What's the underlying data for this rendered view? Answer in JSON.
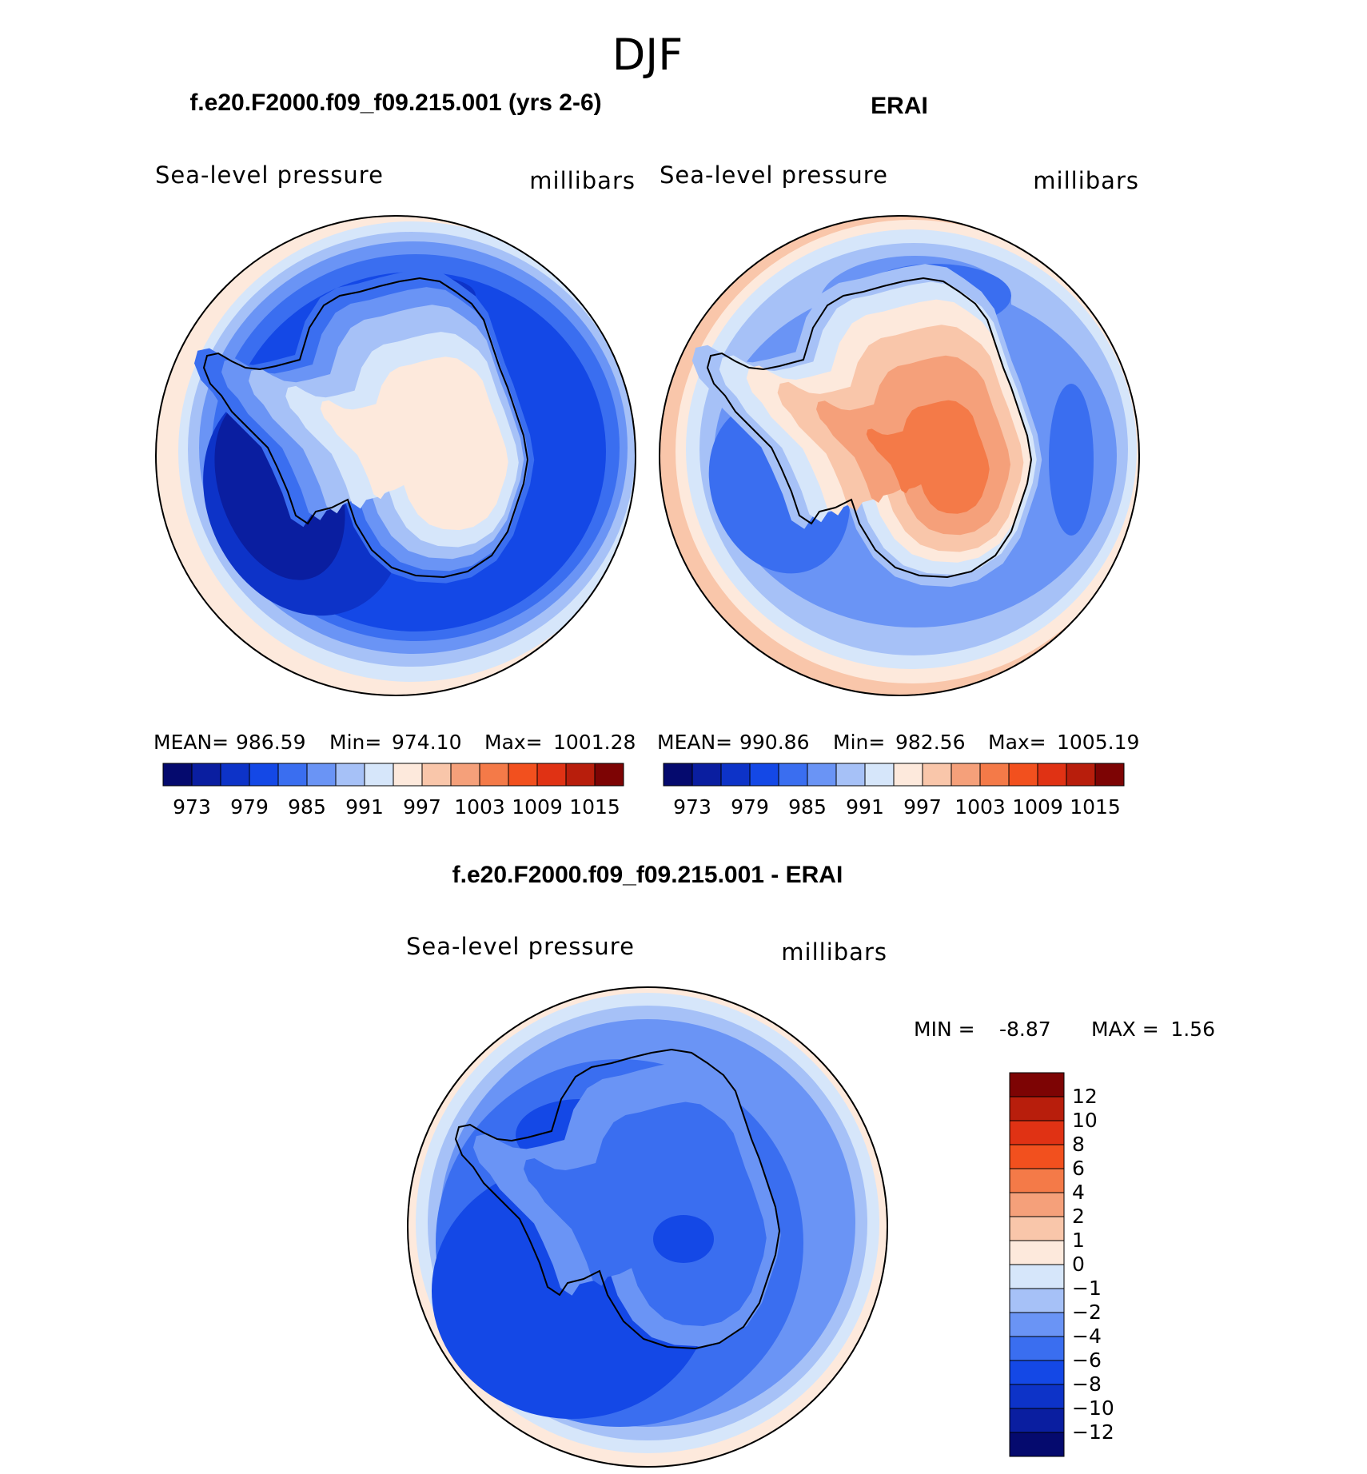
{
  "figure": {
    "season": "DJF",
    "case_title": "f.e20.F2000.f09_f09.215.001 (yrs 2-6)",
    "obs_title": "ERAI",
    "diff_title": "f.e20.F2000.f09_f09.215.001 - ERAI"
  },
  "colors": {
    "abs_palette": [
      "#050a6e",
      "#0a1ea0",
      "#0d33c8",
      "#1448e6",
      "#3a6ef0",
      "#6a94f5",
      "#a6c1f7",
      "#d6e6fa",
      "#fde9dc",
      "#f9c6aa",
      "#f5a07a",
      "#f47a48",
      "#f2501e",
      "#e03214",
      "#b81e0c",
      "#7d0404"
    ],
    "diff_palette": [
      "#050a6e",
      "#0a1ea0",
      "#0d33c8",
      "#1448e6",
      "#3a6ef0",
      "#6a94f5",
      "#a6c1f7",
      "#d6e6fa",
      "#fde9dc",
      "#f9c6aa",
      "#f5a07a",
      "#f47a48",
      "#f2501e",
      "#e03214",
      "#b81e0c",
      "#7d0404"
    ],
    "outline": "#000000",
    "background": "#ffffff"
  },
  "chart_data": [
    {
      "type": "heatmap",
      "projection": "south-polar-stereographic",
      "title": "f.e20.F2000.f09_f09.215.001 (yrs 2-6)",
      "variable": "Sea-level pressure",
      "units": "millibars",
      "stats": {
        "mean_label": "MEAN=",
        "mean": "986.59",
        "min_label": "Min=",
        "min": "974.10",
        "max_label": "Max=",
        "max": "1001.28"
      },
      "levels": [
        973,
        976,
        979,
        982,
        985,
        988,
        991,
        994,
        997,
        1000,
        1003,
        1006,
        1009,
        1012,
        1015
      ],
      "tick_labels": [
        "973",
        "979",
        "985",
        "991",
        "997",
        "1003",
        "1009",
        "1015"
      ],
      "fields": {
        "ring_outer_level_index": 8,
        "ocean_trough_level_index": 1,
        "continent_core_level_index": 8
      }
    },
    {
      "type": "heatmap",
      "projection": "south-polar-stereographic",
      "title": "ERAI",
      "variable": "Sea-level pressure",
      "units": "millibars",
      "stats": {
        "mean_label": "MEAN=",
        "mean": "990.86",
        "min_label": "Min=",
        "min": "982.56",
        "max_label": "Max=",
        "max": "1005.19"
      },
      "levels": [
        973,
        976,
        979,
        982,
        985,
        988,
        991,
        994,
        997,
        1000,
        1003,
        1006,
        1009,
        1012,
        1015
      ],
      "tick_labels": [
        "973",
        "979",
        "985",
        "991",
        "997",
        "1003",
        "1009",
        "1015"
      ],
      "fields": {
        "ring_outer_level_index": 8,
        "ocean_trough_level_index": 4,
        "continent_core_level_index": 11
      }
    },
    {
      "type": "heatmap",
      "projection": "south-polar-stereographic",
      "title": "f.e20.F2000.f09_f09.215.001 - ERAI",
      "variable": "Sea-level pressure",
      "units": "millibars",
      "stats": {
        "min_label": "MIN =",
        "min": "-8.87",
        "max_label": "MAX =",
        "max": "1.56"
      },
      "levels": [
        -12,
        -10,
        -8,
        -6,
        -4,
        -2,
        -1,
        0,
        1,
        2,
        4,
        6,
        8,
        10,
        12
      ],
      "tick_labels": [
        "−12",
        "−10",
        "−8",
        "−6",
        "−4",
        "−2",
        "−1",
        "0",
        "1",
        "2",
        "4",
        "6",
        "8",
        "10",
        "12"
      ]
    }
  ]
}
